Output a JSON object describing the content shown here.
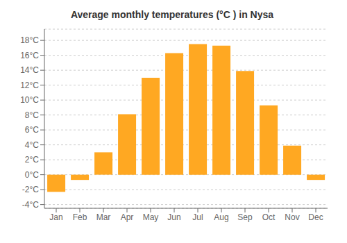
{
  "chart_data": {
    "type": "bar",
    "title": "Average monthly temperatures (°C ) in Nysa",
    "categories": [
      "Jan",
      "Feb",
      "Mar",
      "Apr",
      "May",
      "Jun",
      "Jul",
      "Aug",
      "Sep",
      "Oct",
      "Nov",
      "Dec"
    ],
    "values": [
      -2.3,
      -0.7,
      3.0,
      8.1,
      13.0,
      16.3,
      17.5,
      17.3,
      13.9,
      9.3,
      3.9,
      -0.7
    ],
    "color": "#FFA822",
    "ylim": [
      -4.5,
      19.5
    ],
    "yticks": [
      {
        "value": -4,
        "label": "-4°C"
      },
      {
        "value": -2,
        "label": "-2°C"
      },
      {
        "value": 0,
        "label": "0°C"
      },
      {
        "value": 2,
        "label": "2°C"
      },
      {
        "value": 4,
        "label": "4°C"
      },
      {
        "value": 6,
        "label": "6°C"
      },
      {
        "value": 8,
        "label": "8°C"
      },
      {
        "value": 10,
        "label": "10°C"
      },
      {
        "value": 12,
        "label": "12°C"
      },
      {
        "value": 14,
        "label": "14°C"
      },
      {
        "value": 16,
        "label": "16°C"
      },
      {
        "value": 18,
        "label": "18°C"
      }
    ],
    "grid": true
  }
}
